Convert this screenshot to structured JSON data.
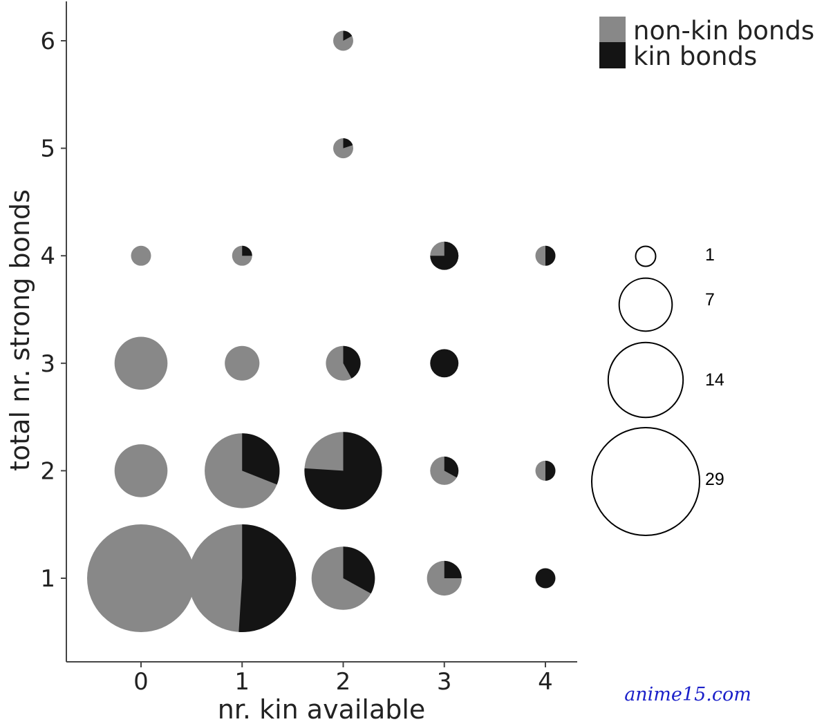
{
  "chart_data": {
    "type": "scatter",
    "subtype": "pie-bubble",
    "xlabel": "nr. kin available",
    "ylabel": "total nr. strong bonds",
    "x_ticks": [
      "0",
      "1",
      "2",
      "3",
      "4"
    ],
    "y_ticks": [
      "1",
      "2",
      "3",
      "4",
      "5",
      "6"
    ],
    "xlim": [
      -0.75,
      4.3
    ],
    "ylim": [
      0.25,
      6.35
    ],
    "grid": false,
    "legend": {
      "position": "top-right",
      "items": [
        {
          "label": "non-kin bonds",
          "color": "#888888"
        },
        {
          "label": "kin bonds",
          "color": "#141414"
        }
      ]
    },
    "size_legend": {
      "position": "right",
      "values": [
        1,
        7,
        14,
        29
      ]
    },
    "colors": {
      "non_kin": "#888888",
      "kin": "#141414",
      "axis": "#444444"
    },
    "points": [
      {
        "x": 0,
        "y": 1,
        "n": 29,
        "kin_fraction": 0.0
      },
      {
        "x": 0,
        "y": 2,
        "n": 7,
        "kin_fraction": 0.0
      },
      {
        "x": 0,
        "y": 3,
        "n": 7,
        "kin_fraction": 0.0
      },
      {
        "x": 0,
        "y": 4,
        "n": 1,
        "kin_fraction": 0.0
      },
      {
        "x": 1,
        "y": 1,
        "n": 29,
        "kin_fraction": 0.51
      },
      {
        "x": 1,
        "y": 2,
        "n": 14,
        "kin_fraction": 0.31
      },
      {
        "x": 1,
        "y": 3,
        "n": 3,
        "kin_fraction": 0.0
      },
      {
        "x": 1,
        "y": 4,
        "n": 1,
        "kin_fraction": 0.25
      },
      {
        "x": 2,
        "y": 1,
        "n": 10,
        "kin_fraction": 0.33
      },
      {
        "x": 2,
        "y": 2,
        "n": 15,
        "kin_fraction": 0.76
      },
      {
        "x": 2,
        "y": 3,
        "n": 3,
        "kin_fraction": 0.42
      },
      {
        "x": 2,
        "y": 5,
        "n": 1,
        "kin_fraction": 0.2
      },
      {
        "x": 2,
        "y": 6,
        "n": 1,
        "kin_fraction": 0.17
      },
      {
        "x": 3,
        "y": 1,
        "n": 3,
        "kin_fraction": 0.25
      },
      {
        "x": 3,
        "y": 2,
        "n": 2,
        "kin_fraction": 0.33
      },
      {
        "x": 3,
        "y": 3,
        "n": 2,
        "kin_fraction": 1.0
      },
      {
        "x": 3,
        "y": 4,
        "n": 2,
        "kin_fraction": 0.75
      },
      {
        "x": 4,
        "y": 1,
        "n": 1,
        "kin_fraction": 1.0
      },
      {
        "x": 4,
        "y": 2,
        "n": 1,
        "kin_fraction": 0.5
      },
      {
        "x": 4,
        "y": 4,
        "n": 1,
        "kin_fraction": 0.5
      }
    ]
  },
  "watermark": "anime15.com"
}
